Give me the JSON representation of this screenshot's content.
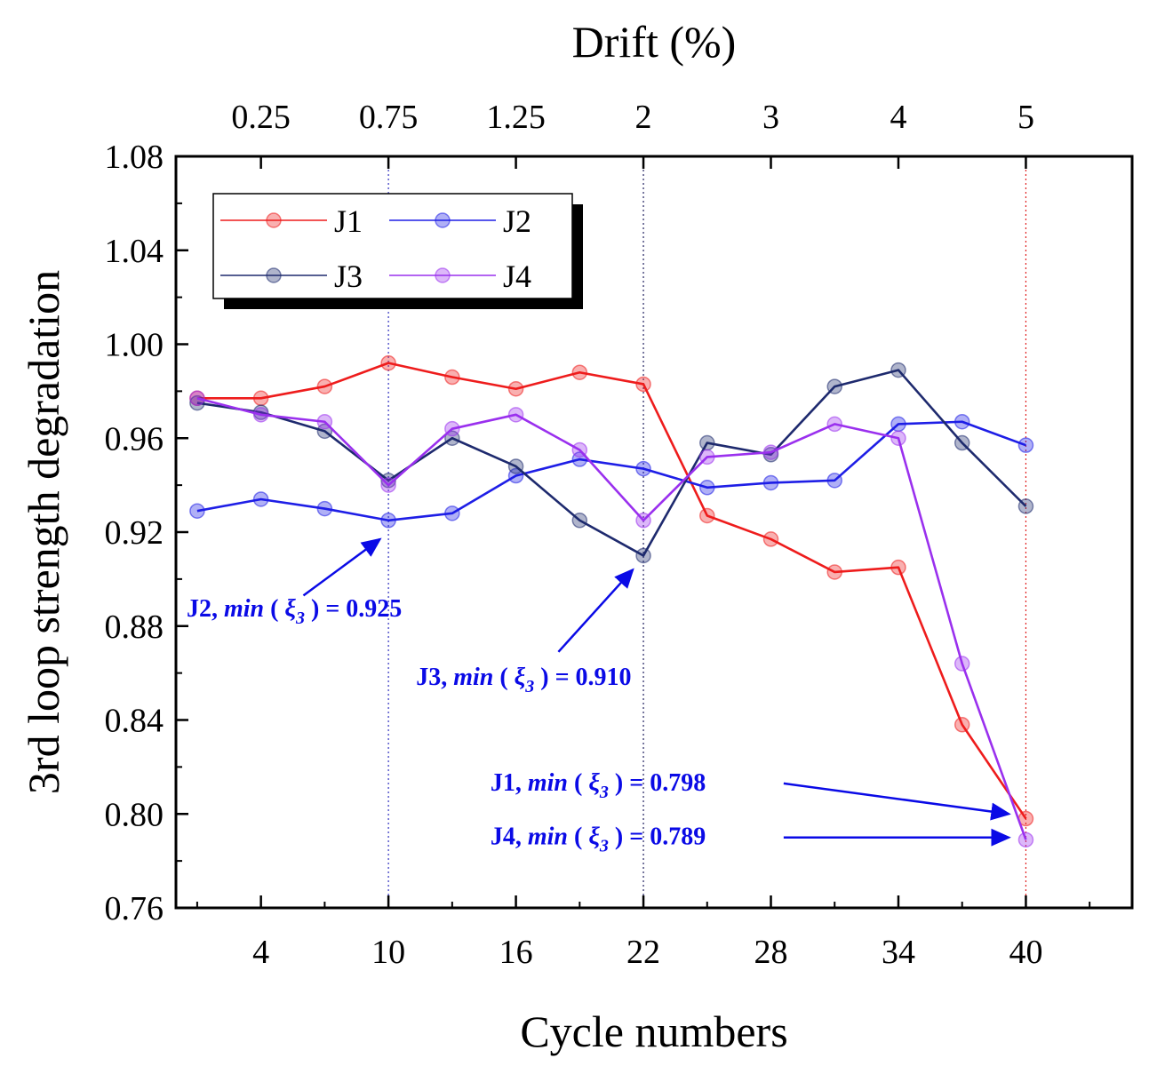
{
  "chart_data": {
    "type": "line",
    "xlabel": "Cycle numbers",
    "ylabel": "3rd loop strength degradation",
    "top_axis_label": "Drift (%)",
    "xlim": [
      0,
      45
    ],
    "ylim": [
      0.76,
      1.08
    ],
    "x_ticks": [
      4,
      10,
      16,
      22,
      28,
      34,
      40
    ],
    "x_tick_labels": [
      "4",
      "10",
      "16",
      "22",
      "28",
      "34",
      "40"
    ],
    "y_ticks": [
      0.76,
      0.8,
      0.84,
      0.88,
      0.92,
      0.96,
      1.0,
      1.04,
      1.08
    ],
    "y_tick_labels": [
      "0.76",
      "0.80",
      "0.84",
      "0.88",
      "0.92",
      "0.96",
      "1.00",
      "1.04",
      "1.08"
    ],
    "top_ticks": [
      {
        "cycle": 4,
        "label": "0.25"
      },
      {
        "cycle": 10,
        "label": "0.75"
      },
      {
        "cycle": 16,
        "label": "1.25"
      },
      {
        "cycle": 22,
        "label": "2"
      },
      {
        "cycle": 28,
        "label": "3"
      },
      {
        "cycle": 34,
        "label": "4"
      },
      {
        "cycle": 40,
        "label": "5"
      }
    ],
    "reference_lines": [
      {
        "x": 10,
        "color": "#3030c0"
      },
      {
        "x": 22,
        "color": "#202060"
      },
      {
        "x": 40,
        "color": "#e02020"
      }
    ],
    "x": [
      1,
      4,
      7,
      10,
      13,
      16,
      19,
      22,
      25,
      28,
      31,
      34,
      37,
      40
    ],
    "series": [
      {
        "name": "J1",
        "color": "#ee1c1c",
        "values": [
          0.977,
          0.977,
          0.982,
          0.992,
          0.986,
          0.981,
          0.988,
          0.983,
          0.927,
          0.917,
          0.903,
          0.905,
          0.838,
          0.798
        ]
      },
      {
        "name": "J2",
        "color": "#1e1ee6",
        "values": [
          0.929,
          0.934,
          0.93,
          0.925,
          0.928,
          0.944,
          0.951,
          0.947,
          0.939,
          0.941,
          0.942,
          0.966,
          0.967,
          0.957
        ]
      },
      {
        "name": "J3",
        "color": "#1e2a6e",
        "values": [
          0.975,
          0.971,
          0.963,
          0.942,
          0.96,
          0.948,
          0.925,
          0.91,
          0.958,
          0.953,
          0.982,
          0.989,
          0.958,
          0.931
        ]
      },
      {
        "name": "J4",
        "color": "#9a30ee",
        "values": [
          0.977,
          0.97,
          0.967,
          0.94,
          0.964,
          0.97,
          0.955,
          0.925,
          0.952,
          0.954,
          0.966,
          0.96,
          0.864,
          0.789
        ]
      }
    ],
    "annotations": [
      {
        "label": "J2",
        "text_min": "min",
        "text_open": "(",
        "symbol": "ξ",
        "sub": "3",
        "text_close": ")",
        "value": "= 0.925",
        "text_cycle": 0.5,
        "text_y": 0.884,
        "arrow_from": [
          6,
          0.893
        ],
        "arrow_to": [
          9.6,
          0.917
        ]
      },
      {
        "label": "J3",
        "text_min": "min",
        "text_open": "(",
        "symbol": "ξ",
        "sub": "3",
        "text_close": ")",
        "value": "= 0.910",
        "text_cycle": 11.3,
        "text_y": 0.855,
        "arrow_from": [
          18,
          0.869
        ],
        "arrow_to": [
          21.5,
          0.904
        ]
      },
      {
        "label": "J1",
        "text_min": "min",
        "text_open": "(",
        "symbol": "ξ",
        "sub": "3",
        "text_close": ")",
        "value": "= 0.798",
        "text_cycle": 14.8,
        "text_y": 0.81,
        "arrow_from": [
          28.6,
          0.813
        ],
        "arrow_to": [
          39.2,
          0.8
        ]
      },
      {
        "label": "J4",
        "text_min": "min",
        "text_open": "(",
        "symbol": "ξ",
        "sub": "3",
        "text_close": ")",
        "value": "= 0.789",
        "text_cycle": 14.8,
        "text_y": 0.787,
        "arrow_from": [
          28.6,
          0.79
        ],
        "arrow_to": [
          39.2,
          0.79
        ]
      }
    ],
    "legend": {
      "placement": "top-left",
      "entries": [
        "J1",
        "J2",
        "J3",
        "J4"
      ]
    },
    "grid": false
  }
}
